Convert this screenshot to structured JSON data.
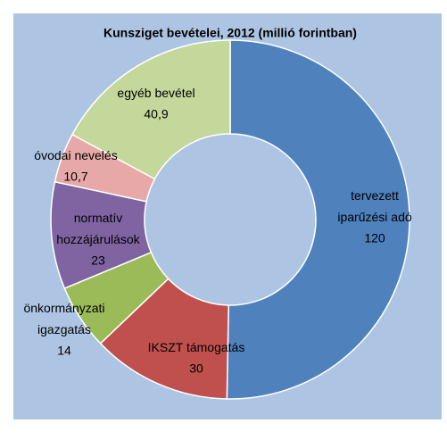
{
  "chart_data": {
    "type": "donut",
    "title": "Kunsziget bevételei, 2012 (millió forintban)",
    "categories": [
      "tervezett\niparűzési adó",
      "IKSZT támogatás",
      "önkormányzati\nigazgatás",
      "normatív\nhozzájárulások",
      "óvodai nevelés",
      "egyéb bevétel"
    ],
    "values": [
      120,
      30,
      14,
      23,
      10.7,
      40.9
    ],
    "value_labels": [
      "120",
      "30",
      "14",
      "23",
      "10,7",
      "40,9"
    ],
    "colors": [
      "#4f81bd",
      "#c0504d",
      "#9bbb59",
      "#8064a2",
      "#e6a9a7",
      "#c4d89b"
    ]
  }
}
